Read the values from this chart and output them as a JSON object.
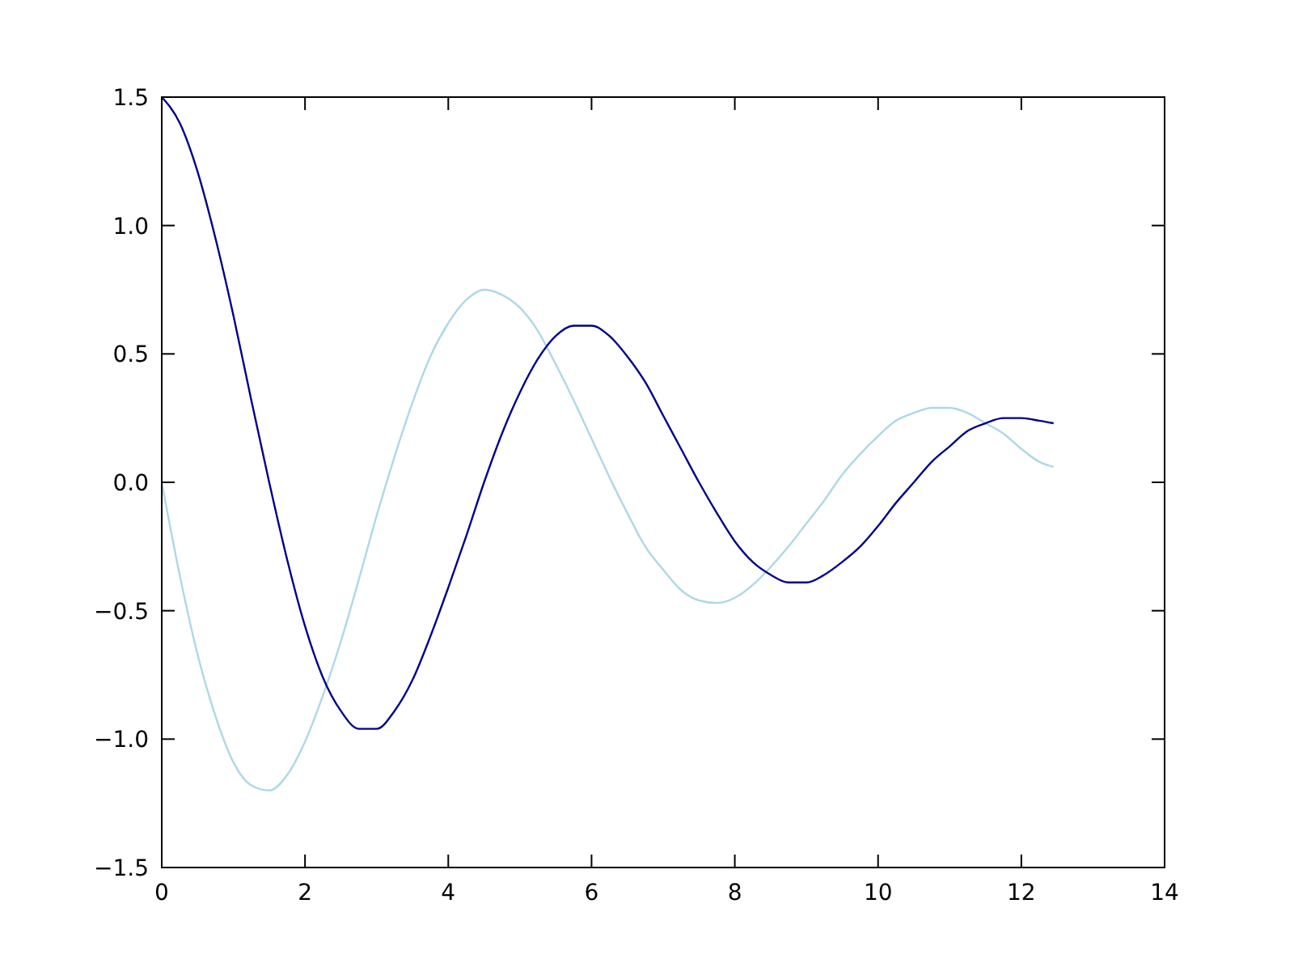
{
  "chart_data": {
    "type": "line",
    "x": [
      0,
      0.25,
      0.5,
      0.75,
      1,
      1.25,
      1.5,
      1.75,
      2,
      2.25,
      2.5,
      2.75,
      3,
      3.25,
      3.5,
      3.75,
      4,
      4.25,
      4.5,
      4.75,
      5,
      5.25,
      5.5,
      5.75,
      6,
      6.25,
      6.5,
      6.75,
      7,
      7.25,
      7.5,
      7.75,
      8,
      8.25,
      8.5,
      8.75,
      9,
      9.25,
      9.5,
      9.75,
      10,
      10.25,
      10.5,
      10.75,
      11,
      11.25,
      11.5,
      11.75,
      12,
      12.25,
      12.45
    ],
    "series": [
      {
        "color": "#add8e6",
        "values": [
          0,
          -0.36,
          -0.67,
          -0.91,
          -1.09,
          -1.18,
          -1.2,
          -1.14,
          -1.01,
          -0.83,
          -0.62,
          -0.38,
          -0.13,
          0.1,
          0.31,
          0.49,
          0.62,
          0.71,
          0.75,
          0.73,
          0.68,
          0.59,
          0.46,
          0.32,
          0.17,
          0.02,
          -0.12,
          -0.25,
          -0.34,
          -0.42,
          -0.46,
          -0.47,
          -0.45,
          -0.4,
          -0.33,
          -0.25,
          -0.16,
          -0.07,
          0.03,
          0.11,
          0.18,
          0.24,
          0.27,
          0.29,
          0.29,
          0.27,
          0.23,
          0.19,
          0.13,
          0.08,
          0.06
        ]
      },
      {
        "color": "#00008b",
        "values": [
          1.5,
          1.4,
          1.21,
          0.95,
          0.65,
          0.32,
          0,
          -0.3,
          -0.56,
          -0.76,
          -0.89,
          -0.96,
          -0.96,
          -0.89,
          -0.77,
          -0.6,
          -0.41,
          -0.21,
          0,
          0.19,
          0.35,
          0.48,
          0.57,
          0.61,
          0.61,
          0.57,
          0.49,
          0.39,
          0.26,
          0.13,
          0,
          -0.12,
          -0.23,
          -0.31,
          -0.36,
          -0.39,
          -0.39,
          -0.36,
          -0.31,
          -0.25,
          -0.17,
          -0.08,
          0,
          0.08,
          0.14,
          0.2,
          0.23,
          0.25,
          0.25,
          0.24,
          0.23
        ]
      }
    ],
    "xlim": [
      0,
      14
    ],
    "xticks": [
      0,
      2,
      4,
      6,
      8,
      10,
      12,
      14
    ],
    "ylim": [
      -1.5,
      1.5
    ],
    "yticks": [
      {
        "value": -1.5,
        "label": "−1.5"
      },
      {
        "value": -1,
        "label": "−1.0"
      },
      {
        "value": -0.5,
        "label": "−0.5"
      },
      {
        "value": 0,
        "label": "0.0"
      },
      {
        "value": 0.5,
        "label": "0.5"
      },
      {
        "value": 1,
        "label": "1.0"
      },
      {
        "value": 1.5,
        "label": "1.5"
      }
    ],
    "grid": false,
    "line_style": "solid",
    "marker": "none"
  }
}
